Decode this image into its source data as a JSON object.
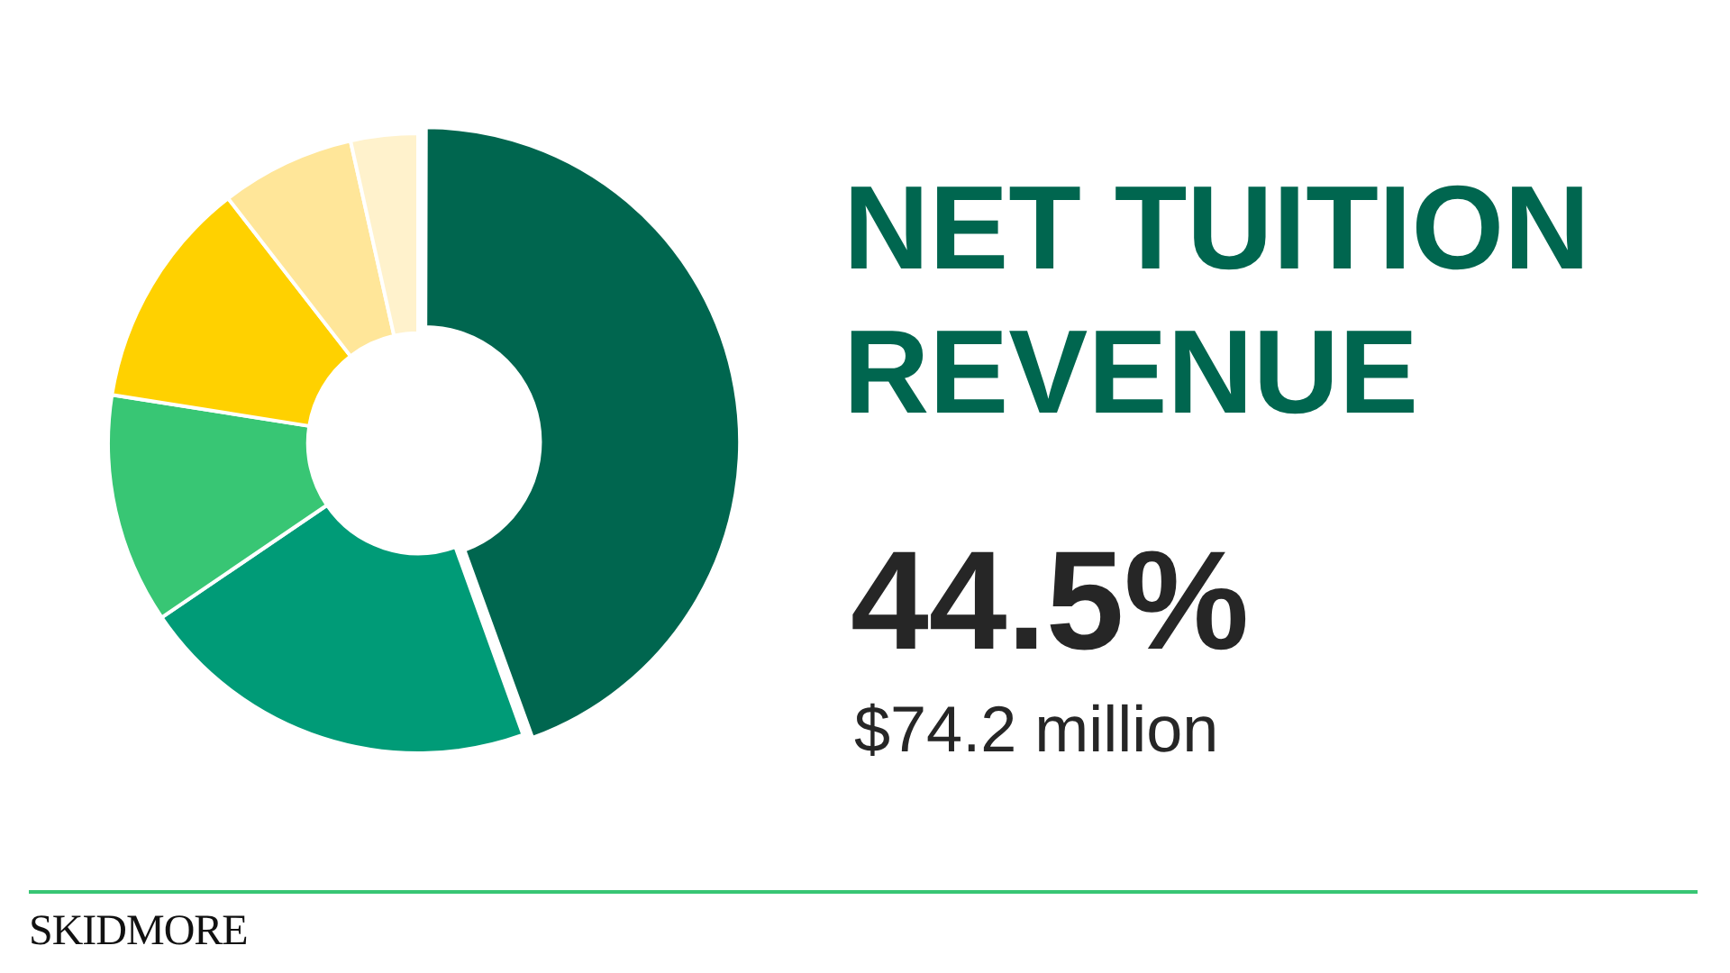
{
  "chart_data": {
    "type": "donut",
    "title": "NET TUITION REVENUE",
    "categories": [
      null,
      null,
      null,
      null,
      null,
      null
    ],
    "values": [
      44.5,
      21,
      12,
      12,
      7,
      3.5
    ],
    "colors": [
      "#00664f",
      "#009b77",
      "#38c674",
      "#ffd100",
      "#ffe699",
      "#fff2cc"
    ],
    "value_labels": [
      "44.5%",
      null,
      null,
      null,
      null,
      null
    ],
    "annotations": [
      "$74.2 million",
      "SKIDMORE"
    ],
    "legend": false
  }
}
